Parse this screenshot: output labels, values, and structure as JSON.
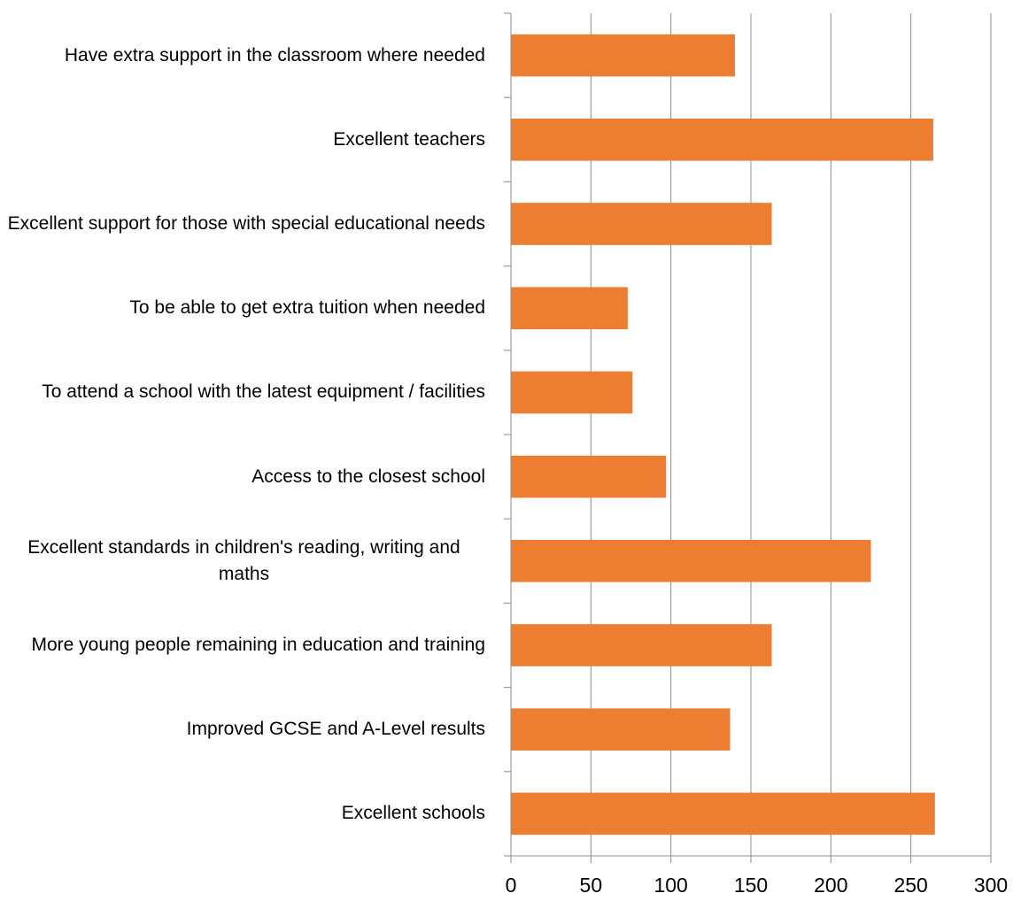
{
  "chart_data": {
    "type": "bar",
    "orientation": "horizontal",
    "categories": [
      "Have extra support in the classroom where needed",
      "Excellent teachers",
      "Excellent support for those with special educational needs",
      "To be able to get extra tuition when needed",
      "To attend a school with the latest equipment / facilities",
      "Access to the closest school",
      "Excellent standards in children's reading, writing and maths",
      "More young people remaining in education and training",
      "Improved GCSE and A-Level results",
      "Excellent schools"
    ],
    "values": [
      140,
      264,
      163,
      73,
      76,
      97,
      225,
      163,
      137,
      265
    ],
    "color": "#ed7d31",
    "xlim": [
      0,
      300
    ],
    "xticks": [
      0,
      50,
      100,
      150,
      200,
      250,
      300
    ],
    "grid": true
  }
}
